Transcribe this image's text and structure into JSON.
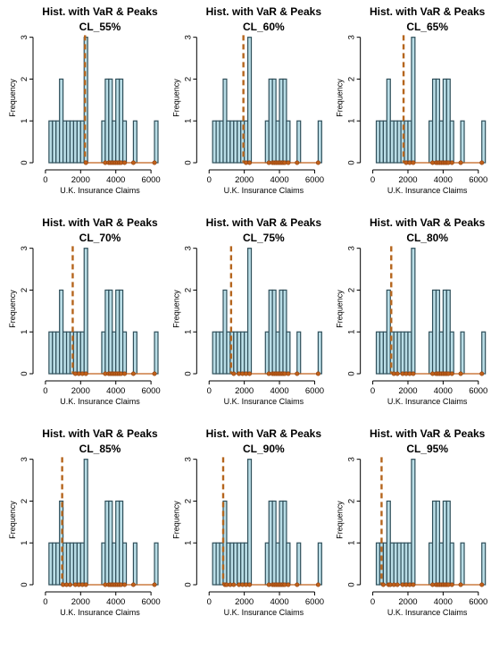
{
  "figure": {
    "panel_title": "Hist. with VaR & Peaks",
    "xlabel": "U.K. Insurance Claims",
    "ylabel": "Frequency"
  },
  "colors": {
    "bar_fill": "#b9dde6",
    "bar_stroke": "#2f4f5a",
    "var_line": "#b5651d",
    "peaks": "#c0601a",
    "axis": "#000000"
  },
  "chart_data": [
    {
      "type": "bar",
      "title": "Hist. with VaR & Peaks",
      "subtitle": "CL_55%",
      "xlabel": "U.K. Insurance Claims",
      "ylabel": "Frequency",
      "x_ticks": [
        0,
        2000,
        4000,
        6000
      ],
      "y_ticks": [
        0,
        1,
        2,
        3
      ],
      "xlim": [
        -300,
        6400
      ],
      "ylim": [
        0,
        3.1
      ],
      "bin_width": 200,
      "bins": [
        {
          "start": 200,
          "count": 1
        },
        {
          "start": 400,
          "count": 1
        },
        {
          "start": 600,
          "count": 1
        },
        {
          "start": 800,
          "count": 2
        },
        {
          "start": 1000,
          "count": 1
        },
        {
          "start": 1200,
          "count": 1
        },
        {
          "start": 1400,
          "count": 1
        },
        {
          "start": 1600,
          "count": 1
        },
        {
          "start": 1800,
          "count": 1
        },
        {
          "start": 2000,
          "count": 1
        },
        {
          "start": 2200,
          "count": 3
        },
        {
          "start": 3200,
          "count": 1
        },
        {
          "start": 3400,
          "count": 2
        },
        {
          "start": 3600,
          "count": 2
        },
        {
          "start": 3800,
          "count": 1
        },
        {
          "start": 4000,
          "count": 2
        },
        {
          "start": 4200,
          "count": 2
        },
        {
          "start": 4400,
          "count": 1
        },
        {
          "start": 5000,
          "count": 1
        },
        {
          "start": 6200,
          "count": 1
        }
      ],
      "var": 2250,
      "peaks": [
        2300,
        3400,
        3600,
        3700,
        3800,
        3900,
        4000,
        4100,
        4200,
        4300,
        4500,
        5000,
        6200
      ]
    },
    {
      "type": "bar",
      "title": "Hist. with VaR & Peaks",
      "subtitle": "CL_60%",
      "xlabel": "U.K. Insurance Claims",
      "ylabel": "Frequency",
      "x_ticks": [
        0,
        2000,
        4000,
        6000
      ],
      "y_ticks": [
        0,
        1,
        2,
        3
      ],
      "xlim": [
        -300,
        6400
      ],
      "ylim": [
        0,
        3.1
      ],
      "bin_width": 200,
      "bins": [
        {
          "start": 200,
          "count": 1
        },
        {
          "start": 400,
          "count": 1
        },
        {
          "start": 600,
          "count": 1
        },
        {
          "start": 800,
          "count": 2
        },
        {
          "start": 1000,
          "count": 1
        },
        {
          "start": 1200,
          "count": 1
        },
        {
          "start": 1400,
          "count": 1
        },
        {
          "start": 1600,
          "count": 1
        },
        {
          "start": 1800,
          "count": 1
        },
        {
          "start": 2000,
          "count": 1
        },
        {
          "start": 2200,
          "count": 3
        },
        {
          "start": 3200,
          "count": 1
        },
        {
          "start": 3400,
          "count": 2
        },
        {
          "start": 3600,
          "count": 2
        },
        {
          "start": 3800,
          "count": 1
        },
        {
          "start": 4000,
          "count": 2
        },
        {
          "start": 4200,
          "count": 2
        },
        {
          "start": 4400,
          "count": 1
        },
        {
          "start": 5000,
          "count": 1
        },
        {
          "start": 6200,
          "count": 1
        }
      ],
      "var": 1950,
      "peaks": [
        2100,
        2300,
        3400,
        3600,
        3700,
        3800,
        3900,
        4000,
        4100,
        4200,
        4300,
        4500,
        5000,
        6200
      ]
    },
    {
      "type": "bar",
      "title": "Hist. with VaR & Peaks",
      "subtitle": "CL_65%",
      "xlabel": "U.K. Insurance Claims",
      "ylabel": "Frequency",
      "x_ticks": [
        0,
        2000,
        4000,
        6000
      ],
      "y_ticks": [
        0,
        1,
        2,
        3
      ],
      "xlim": [
        -300,
        6400
      ],
      "ylim": [
        0,
        3.1
      ],
      "bin_width": 200,
      "bins": [
        {
          "start": 200,
          "count": 1
        },
        {
          "start": 400,
          "count": 1
        },
        {
          "start": 600,
          "count": 1
        },
        {
          "start": 800,
          "count": 2
        },
        {
          "start": 1000,
          "count": 1
        },
        {
          "start": 1200,
          "count": 1
        },
        {
          "start": 1400,
          "count": 1
        },
        {
          "start": 1600,
          "count": 1
        },
        {
          "start": 1800,
          "count": 1
        },
        {
          "start": 2000,
          "count": 1
        },
        {
          "start": 2200,
          "count": 3
        },
        {
          "start": 3200,
          "count": 1
        },
        {
          "start": 3400,
          "count": 2
        },
        {
          "start": 3600,
          "count": 2
        },
        {
          "start": 3800,
          "count": 1
        },
        {
          "start": 4000,
          "count": 2
        },
        {
          "start": 4200,
          "count": 2
        },
        {
          "start": 4400,
          "count": 1
        },
        {
          "start": 5000,
          "count": 1
        },
        {
          "start": 6200,
          "count": 1
        }
      ],
      "var": 1750,
      "peaks": [
        1900,
        2100,
        2300,
        3400,
        3600,
        3700,
        3800,
        3900,
        4000,
        4100,
        4200,
        4300,
        4500,
        5000,
        6200
      ]
    },
    {
      "type": "bar",
      "title": "Hist. with VaR & Peaks",
      "subtitle": "CL_70%",
      "xlabel": "U.K. Insurance Claims",
      "ylabel": "Frequency",
      "x_ticks": [
        0,
        2000,
        4000,
        6000
      ],
      "y_ticks": [
        0,
        1,
        2,
        3
      ],
      "xlim": [
        -300,
        6400
      ],
      "ylim": [
        0,
        3.1
      ],
      "bin_width": 200,
      "bins": [
        {
          "start": 200,
          "count": 1
        },
        {
          "start": 400,
          "count": 1
        },
        {
          "start": 600,
          "count": 1
        },
        {
          "start": 800,
          "count": 2
        },
        {
          "start": 1000,
          "count": 1
        },
        {
          "start": 1200,
          "count": 1
        },
        {
          "start": 1400,
          "count": 1
        },
        {
          "start": 1600,
          "count": 1
        },
        {
          "start": 1800,
          "count": 1
        },
        {
          "start": 2000,
          "count": 1
        },
        {
          "start": 2200,
          "count": 3
        },
        {
          "start": 3200,
          "count": 1
        },
        {
          "start": 3400,
          "count": 2
        },
        {
          "start": 3600,
          "count": 2
        },
        {
          "start": 3800,
          "count": 1
        },
        {
          "start": 4000,
          "count": 2
        },
        {
          "start": 4200,
          "count": 2
        },
        {
          "start": 4400,
          "count": 1
        },
        {
          "start": 5000,
          "count": 1
        },
        {
          "start": 6200,
          "count": 1
        }
      ],
      "var": 1550,
      "peaks": [
        1700,
        1900,
        2100,
        2300,
        3400,
        3600,
        3700,
        3800,
        3900,
        4000,
        4100,
        4200,
        4300,
        4500,
        5000,
        6200
      ]
    },
    {
      "type": "bar",
      "title": "Hist. with VaR & Peaks",
      "subtitle": "CL_75%",
      "xlabel": "U.K. Insurance Claims",
      "ylabel": "Frequency",
      "x_ticks": [
        0,
        2000,
        4000,
        6000
      ],
      "y_ticks": [
        0,
        1,
        2,
        3
      ],
      "xlim": [
        -300,
        6400
      ],
      "ylim": [
        0,
        3.1
      ],
      "bin_width": 200,
      "bins": [
        {
          "start": 200,
          "count": 1
        },
        {
          "start": 400,
          "count": 1
        },
        {
          "start": 600,
          "count": 1
        },
        {
          "start": 800,
          "count": 2
        },
        {
          "start": 1000,
          "count": 1
        },
        {
          "start": 1200,
          "count": 1
        },
        {
          "start": 1400,
          "count": 1
        },
        {
          "start": 1600,
          "count": 1
        },
        {
          "start": 1800,
          "count": 1
        },
        {
          "start": 2000,
          "count": 1
        },
        {
          "start": 2200,
          "count": 3
        },
        {
          "start": 3200,
          "count": 1
        },
        {
          "start": 3400,
          "count": 2
        },
        {
          "start": 3600,
          "count": 2
        },
        {
          "start": 3800,
          "count": 1
        },
        {
          "start": 4000,
          "count": 2
        },
        {
          "start": 4200,
          "count": 2
        },
        {
          "start": 4400,
          "count": 1
        },
        {
          "start": 5000,
          "count": 1
        },
        {
          "start": 6200,
          "count": 1
        }
      ],
      "var": 1250,
      "peaks": [
        1400,
        1700,
        1900,
        2100,
        2300,
        3400,
        3600,
        3700,
        3800,
        3900,
        4000,
        4100,
        4200,
        4300,
        4500,
        5000,
        6200
      ]
    },
    {
      "type": "bar",
      "title": "Hist. with VaR & Peaks",
      "subtitle": "CL_80%",
      "xlabel": "U.K. Insurance Claims",
      "ylabel": "Frequency",
      "x_ticks": [
        0,
        2000,
        4000,
        6000
      ],
      "y_ticks": [
        0,
        1,
        2,
        3
      ],
      "xlim": [
        -300,
        6400
      ],
      "ylim": [
        0,
        3.1
      ],
      "bin_width": 200,
      "bins": [
        {
          "start": 200,
          "count": 1
        },
        {
          "start": 400,
          "count": 1
        },
        {
          "start": 600,
          "count": 1
        },
        {
          "start": 800,
          "count": 2
        },
        {
          "start": 1000,
          "count": 1
        },
        {
          "start": 1200,
          "count": 1
        },
        {
          "start": 1400,
          "count": 1
        },
        {
          "start": 1600,
          "count": 1
        },
        {
          "start": 1800,
          "count": 1
        },
        {
          "start": 2000,
          "count": 1
        },
        {
          "start": 2200,
          "count": 3
        },
        {
          "start": 3200,
          "count": 1
        },
        {
          "start": 3400,
          "count": 2
        },
        {
          "start": 3600,
          "count": 2
        },
        {
          "start": 3800,
          "count": 1
        },
        {
          "start": 4000,
          "count": 2
        },
        {
          "start": 4200,
          "count": 2
        },
        {
          "start": 4400,
          "count": 1
        },
        {
          "start": 5000,
          "count": 1
        },
        {
          "start": 6200,
          "count": 1
        }
      ],
      "var": 1050,
      "peaks": [
        1200,
        1400,
        1700,
        1900,
        2100,
        2300,
        3400,
        3600,
        3700,
        3800,
        3900,
        4000,
        4100,
        4200,
        4300,
        4500,
        5000,
        6200
      ]
    },
    {
      "type": "bar",
      "title": "Hist. with VaR & Peaks",
      "subtitle": "CL_85%",
      "xlabel": "U.K. Insurance Claims",
      "ylabel": "Frequency",
      "x_ticks": [
        0,
        2000,
        4000,
        6000
      ],
      "y_ticks": [
        0,
        1,
        2,
        3
      ],
      "xlim": [
        -300,
        6400
      ],
      "ylim": [
        0,
        3.1
      ],
      "bin_width": 200,
      "bins": [
        {
          "start": 200,
          "count": 1
        },
        {
          "start": 400,
          "count": 1
        },
        {
          "start": 600,
          "count": 1
        },
        {
          "start": 800,
          "count": 2
        },
        {
          "start": 1000,
          "count": 1
        },
        {
          "start": 1200,
          "count": 1
        },
        {
          "start": 1400,
          "count": 1
        },
        {
          "start": 1600,
          "count": 1
        },
        {
          "start": 1800,
          "count": 1
        },
        {
          "start": 2000,
          "count": 1
        },
        {
          "start": 2200,
          "count": 3
        },
        {
          "start": 3200,
          "count": 1
        },
        {
          "start": 3400,
          "count": 2
        },
        {
          "start": 3600,
          "count": 2
        },
        {
          "start": 3800,
          "count": 1
        },
        {
          "start": 4000,
          "count": 2
        },
        {
          "start": 4200,
          "count": 2
        },
        {
          "start": 4400,
          "count": 1
        },
        {
          "start": 5000,
          "count": 1
        },
        {
          "start": 6200,
          "count": 1
        }
      ],
      "var": 950,
      "peaks": [
        1000,
        1200,
        1400,
        1700,
        1900,
        2100,
        2300,
        3400,
        3600,
        3700,
        3800,
        3900,
        4000,
        4100,
        4200,
        4300,
        4500,
        5000,
        6200
      ]
    },
    {
      "type": "bar",
      "title": "Hist. with VaR & Peaks",
      "subtitle": "CL_90%",
      "xlabel": "U.K. Insurance Claims",
      "ylabel": "Frequency",
      "x_ticks": [
        0,
        2000,
        4000,
        6000
      ],
      "y_ticks": [
        0,
        1,
        2,
        3
      ],
      "xlim": [
        -300,
        6400
      ],
      "ylim": [
        0,
        3.1
      ],
      "bin_width": 200,
      "bins": [
        {
          "start": 200,
          "count": 1
        },
        {
          "start": 400,
          "count": 1
        },
        {
          "start": 600,
          "count": 1
        },
        {
          "start": 800,
          "count": 2
        },
        {
          "start": 1000,
          "count": 1
        },
        {
          "start": 1200,
          "count": 1
        },
        {
          "start": 1400,
          "count": 1
        },
        {
          "start": 1600,
          "count": 1
        },
        {
          "start": 1800,
          "count": 1
        },
        {
          "start": 2000,
          "count": 1
        },
        {
          "start": 2200,
          "count": 3
        },
        {
          "start": 3200,
          "count": 1
        },
        {
          "start": 3400,
          "count": 2
        },
        {
          "start": 3600,
          "count": 2
        },
        {
          "start": 3800,
          "count": 1
        },
        {
          "start": 4000,
          "count": 2
        },
        {
          "start": 4200,
          "count": 2
        },
        {
          "start": 4400,
          "count": 1
        },
        {
          "start": 5000,
          "count": 1
        },
        {
          "start": 6200,
          "count": 1
        }
      ],
      "var": 800,
      "peaks": [
        900,
        1000,
        1200,
        1400,
        1700,
        1900,
        2100,
        2300,
        3400,
        3600,
        3700,
        3800,
        3900,
        4000,
        4100,
        4200,
        4300,
        4500,
        5000,
        6200
      ]
    },
    {
      "type": "bar",
      "title": "Hist. with VaR & Peaks",
      "subtitle": "CL_95%",
      "xlabel": "U.K. Insurance Claims",
      "ylabel": "Frequency",
      "x_ticks": [
        0,
        2000,
        4000,
        6000
      ],
      "y_ticks": [
        0,
        1,
        2,
        3
      ],
      "xlim": [
        -300,
        6400
      ],
      "ylim": [
        0,
        3.1
      ],
      "bin_width": 200,
      "bins": [
        {
          "start": 200,
          "count": 1
        },
        {
          "start": 400,
          "count": 1
        },
        {
          "start": 600,
          "count": 1
        },
        {
          "start": 800,
          "count": 2
        },
        {
          "start": 1000,
          "count": 1
        },
        {
          "start": 1200,
          "count": 1
        },
        {
          "start": 1400,
          "count": 1
        },
        {
          "start": 1600,
          "count": 1
        },
        {
          "start": 1800,
          "count": 1
        },
        {
          "start": 2000,
          "count": 1
        },
        {
          "start": 2200,
          "count": 3
        },
        {
          "start": 3200,
          "count": 1
        },
        {
          "start": 3400,
          "count": 2
        },
        {
          "start": 3600,
          "count": 2
        },
        {
          "start": 3800,
          "count": 1
        },
        {
          "start": 4000,
          "count": 2
        },
        {
          "start": 4200,
          "count": 2
        },
        {
          "start": 4400,
          "count": 1
        },
        {
          "start": 5000,
          "count": 1
        },
        {
          "start": 6200,
          "count": 1
        }
      ],
      "var": 500,
      "peaks": [
        600,
        900,
        1000,
        1200,
        1400,
        1700,
        1900,
        2100,
        2300,
        3400,
        3600,
        3700,
        3800,
        3900,
        4000,
        4100,
        4200,
        4300,
        4500,
        5000,
        6200
      ]
    }
  ]
}
